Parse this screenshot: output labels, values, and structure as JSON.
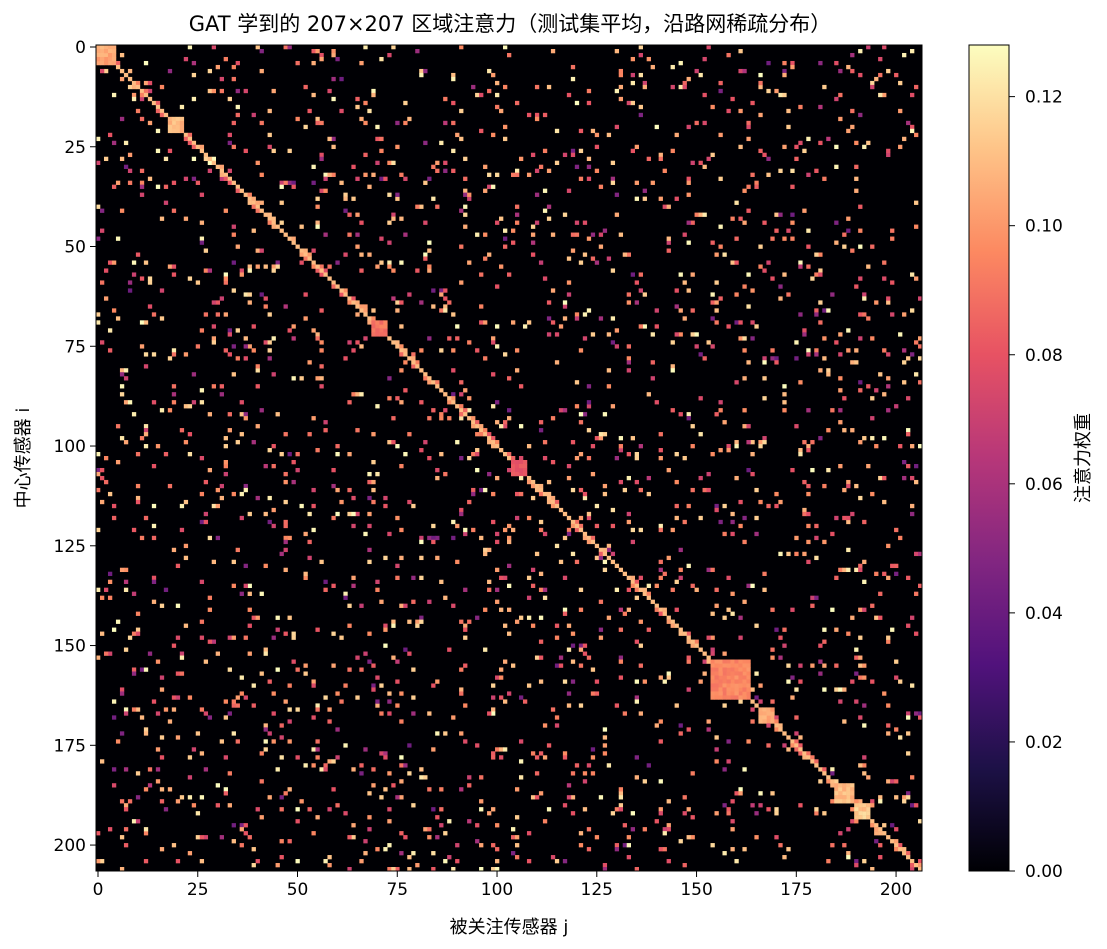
{
  "chart_data": {
    "type": "heatmap",
    "title": "GAT 学到的 207×207 区域注意力（测试集平均，沿路网稀疏分布）",
    "xlabel": "被关注传感器 j",
    "ylabel": "中心传感器 i",
    "n": 207,
    "xticks": [
      0,
      25,
      50,
      75,
      100,
      125,
      150,
      175,
      200
    ],
    "yticks": [
      0,
      25,
      50,
      75,
      100,
      125,
      150,
      175,
      200
    ],
    "colormap": "magma",
    "colorbar": {
      "label": "注意力权重",
      "vmin": 0.0,
      "vmax": 0.128,
      "ticks": [
        0.0,
        0.02,
        0.04,
        0.06,
        0.08,
        0.1,
        0.12
      ],
      "tick_labels": [
        "0.00",
        "0.02",
        "0.04",
        "0.06",
        "0.08",
        "0.10",
        "0.12"
      ]
    },
    "diagonal_value": 0.11,
    "highlight_blocks": [
      {
        "rows": [
          0,
          4
        ],
        "cols": [
          0,
          4
        ],
        "value": 0.11
      },
      {
        "rows": [
          18,
          21
        ],
        "cols": [
          18,
          21
        ],
        "value": 0.115
      },
      {
        "rows": [
          69,
          72
        ],
        "cols": [
          69,
          72
        ],
        "value": 0.095
      },
      {
        "rows": [
          104,
          107
        ],
        "cols": [
          104,
          107
        ],
        "value": 0.085
      },
      {
        "rows": [
          154,
          163
        ],
        "cols": [
          154,
          163
        ],
        "value": 0.1
      },
      {
        "rows": [
          166,
          169
        ],
        "cols": [
          166,
          169
        ],
        "value": 0.11
      },
      {
        "rows": [
          185,
          189
        ],
        "cols": [
          185,
          189
        ],
        "value": 0.115
      },
      {
        "rows": [
          190,
          193
        ],
        "cols": [
          190,
          193
        ],
        "value": 0.12
      }
    ],
    "off_diagonal_density": 0.035,
    "off_diagonal_value_range": [
      0.04,
      0.128
    ]
  }
}
